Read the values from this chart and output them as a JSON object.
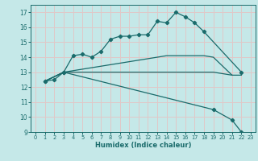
{
  "xlabel": "Humidex (Indice chaleur)",
  "bg_color": "#c5e8e8",
  "grid_color": "#e0c8c8",
  "line_color": "#1a6b6b",
  "xlim": [
    -0.5,
    23.5
  ],
  "ylim": [
    9,
    17.5
  ],
  "xticks": [
    0,
    1,
    2,
    3,
    4,
    5,
    6,
    7,
    8,
    9,
    10,
    11,
    12,
    13,
    14,
    15,
    16,
    17,
    18,
    19,
    20,
    21,
    22,
    23
  ],
  "yticks": [
    9,
    10,
    11,
    12,
    13,
    14,
    15,
    16,
    17
  ],
  "lines": [
    {
      "x": [
        1,
        2,
        3,
        4,
        5,
        6,
        7,
        8,
        9,
        10,
        11,
        12,
        13,
        14,
        15,
        16,
        17,
        18,
        22
      ],
      "y": [
        12.4,
        12.5,
        13.0,
        14.1,
        14.2,
        14.0,
        14.4,
        15.2,
        15.4,
        15.4,
        15.5,
        15.5,
        16.4,
        16.3,
        17.0,
        16.7,
        16.3,
        15.7,
        13.0
      ],
      "marker": true
    },
    {
      "x": [
        1,
        3,
        5,
        8,
        10,
        12,
        14,
        16,
        18,
        19,
        21,
        22
      ],
      "y": [
        12.4,
        13.0,
        13.2,
        13.5,
        13.7,
        13.9,
        14.1,
        14.1,
        14.1,
        14.0,
        12.8,
        12.8
      ],
      "marker": false
    },
    {
      "x": [
        1,
        3,
        19,
        21
      ],
      "y": [
        12.4,
        13.0,
        13.0,
        12.8
      ],
      "marker": false
    },
    {
      "x": [
        1,
        3,
        19,
        21,
        22,
        23
      ],
      "y": [
        12.4,
        13.0,
        10.5,
        9.8,
        9.0,
        8.8
      ],
      "marker": true
    }
  ]
}
